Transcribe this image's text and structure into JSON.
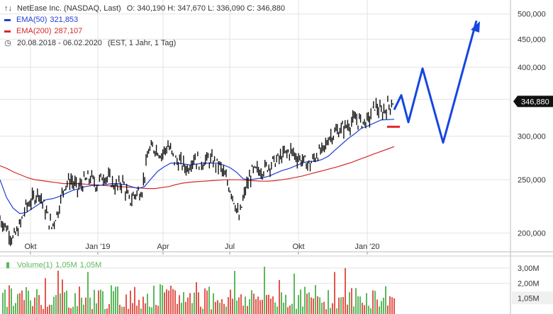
{
  "header": {
    "instrument": "NetEase Inc. (NASDAQ, Last)",
    "ohlc": "O: 340,190  H: 347,670  L: 336,090  C: 346,880",
    "ema50_label": "EMA(50)",
    "ema50_value": "321,853",
    "ema200_label": "EMA(200)",
    "ema200_value": "287,107",
    "range": "20.08.2018 - 06.02.2020",
    "range_detail": "(EST, 1 Jahr, 1 Tag)",
    "volume_label": "Volume(1)",
    "volume_value1": "1,05M",
    "volume_value2": "1,05M"
  },
  "colors": {
    "price": "#111111",
    "ema50": "#1f3fd6",
    "ema200": "#d62828",
    "projection": "#1546e0",
    "marker": "#e0262a",
    "vol_up": "#5cb85c",
    "vol_down": "#e2564d",
    "grid": "#e3e3e3",
    "last_price_bg": "#111111"
  },
  "chart_data": [
    {
      "type": "line",
      "title": "NetEase Inc. (NASDAQ, Last)",
      "y_scale": "log",
      "ylim": [
        185,
        530
      ],
      "yticks": [
        "500,000",
        "450,000",
        "400,000",
        "350,000",
        "300,000",
        "250,000",
        "200,000"
      ],
      "ytick_values": [
        500,
        450,
        400,
        350,
        300,
        250,
        200
      ],
      "xticks": [
        "Okt",
        "Jan '19",
        "Apr",
        "Jul",
        "Okt",
        "Jan '20"
      ],
      "last_price": "346,880",
      "series": [
        {
          "name": "NetEase Inc. (NASDAQ, Last)",
          "values": [
            212,
            205,
            195,
            205,
            223,
            230,
            238,
            220,
            205,
            220,
            245,
            250,
            240,
            248,
            252,
            245,
            255,
            250,
            242,
            248,
            228,
            236,
            240,
            282,
            286,
            278,
            288,
            272,
            268,
            262,
            275,
            268,
            272,
            270,
            265,
            250,
            235,
            212,
            240,
            258,
            260,
            262,
            268,
            272,
            278,
            282,
            275,
            270,
            266,
            278,
            282,
            300,
            305,
            310,
            315,
            322,
            318,
            320,
            342,
            330,
            340,
            346.88
          ]
        },
        {
          "name": "EMA(50)",
          "values": [
            250,
            232,
            222,
            217,
            218,
            222,
            226,
            230,
            231,
            233,
            236,
            239,
            241,
            243,
            244,
            244,
            245,
            246,
            246,
            245,
            243,
            241,
            243,
            251,
            259,
            264,
            268,
            268,
            267,
            266,
            267,
            268,
            268,
            268,
            266,
            263,
            258,
            251,
            250,
            251,
            252,
            254,
            257,
            260,
            262,
            265,
            268,
            270,
            270,
            272,
            276,
            283,
            290,
            297,
            303,
            310,
            313,
            317,
            321,
            321.5,
            321.853
          ]
        },
        {
          "name": "EMA(200)",
          "values": [
            265,
            262,
            258,
            255,
            252,
            250,
            249,
            248,
            247,
            246,
            246,
            246,
            245.5,
            245,
            244.5,
            244,
            243.5,
            243,
            242.5,
            242,
            241.5,
            241,
            241,
            242,
            243,
            245,
            246.5,
            247.5,
            248,
            248.5,
            249,
            249.5,
            250,
            250,
            250,
            249.5,
            249,
            248.5,
            248.5,
            249,
            250,
            251,
            252.5,
            254,
            256,
            258,
            260,
            262,
            264,
            266.5,
            269,
            272,
            275,
            278,
            281,
            284,
            287.107
          ]
        }
      ]
    },
    {
      "type": "bar",
      "title": "Volume(1)",
      "yticks": [
        "3,00M",
        "2,00M",
        "1,05M"
      ],
      "ytick_values": [
        3.0,
        2.0,
        1.05
      ],
      "ylim": [
        0,
        3.6
      ],
      "last_value": "1,05M"
    }
  ]
}
